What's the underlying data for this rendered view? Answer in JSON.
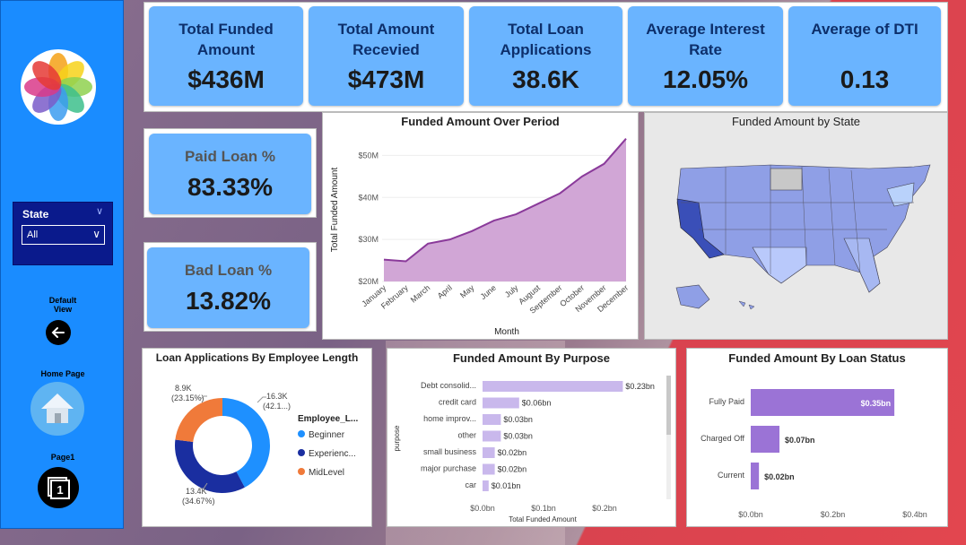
{
  "sidebar": {
    "slicer": {
      "title": "State",
      "selected": "All"
    },
    "default_view": {
      "label_line1": "Default",
      "label_line2": "View"
    },
    "home_page": {
      "label": "Home Page"
    },
    "page1": {
      "label": "Page1"
    }
  },
  "kpis": [
    {
      "title_line1": "Total Funded",
      "title_line2": "Amount",
      "value": "$436M"
    },
    {
      "title_line1": "Total Amount",
      "title_line2": "Recevied",
      "value": "$473M"
    },
    {
      "title_line1": "Total Loan",
      "title_line2": "Applications",
      "value": "38.6K"
    },
    {
      "title_line1": "Average Interest",
      "title_line2": "Rate",
      "value": "12.05%"
    },
    {
      "title_line1": "",
      "title_line2": "Average of DTI",
      "value": "0.13"
    }
  ],
  "paid_loan": {
    "title": "Paid Loan %",
    "value": "83.33%"
  },
  "bad_loan": {
    "title": "Bad Loan %",
    "value": "13.82%"
  },
  "map": {
    "title": "Funded Amount by State"
  },
  "colors": {
    "sidebar": "#1a8cff",
    "kpi": "#6ab4ff",
    "area": "#d1a6d6",
    "line": "#8a3a9a",
    "bar_purple": "#9b73d6",
    "bar_lavender": "#c9b8ec",
    "donut_blue": "#1e90ff",
    "donut_navy": "#1a2ea0",
    "donut_orange": "#f07a3a"
  },
  "chart_data": [
    {
      "type": "area",
      "title": "Funded Amount Over Period",
      "xlabel": "Month",
      "ylabel": "Total Funded Amount",
      "categories": [
        "January",
        "February",
        "March",
        "April",
        "May",
        "June",
        "July",
        "August",
        "September",
        "October",
        "November",
        "December"
      ],
      "values": [
        25.2,
        24.8,
        29.0,
        30.0,
        32.0,
        34.5,
        36.0,
        38.5,
        41.0,
        45.0,
        48.0,
        54.0
      ],
      "ylim": [
        20,
        55
      ],
      "yticks": [
        "$20M",
        "$30M",
        "$40M",
        "$50M"
      ],
      "ytick_values": [
        20,
        30,
        40,
        50
      ]
    },
    {
      "type": "pie",
      "title": "Loan Applications By Employee Length",
      "legend_title": "Employee_L...",
      "legend": [
        "Beginner",
        "Experienc...",
        "MidLevel"
      ],
      "values": [
        16.3,
        13.4,
        8.9
      ],
      "labels": [
        {
          "line1": "16.3K",
          "line2": "(42.1...)"
        },
        {
          "line1": "13.4K",
          "line2": "(34.67%)"
        },
        {
          "line1": "8.9K",
          "line2": "(23.15%)"
        }
      ]
    },
    {
      "type": "bar",
      "title": "Funded Amount By Purpose",
      "xlabel": "Total Funded Amount",
      "ylabel": "purpose",
      "categories": [
        "Debt consolid...",
        "credit card",
        "home improv...",
        "other",
        "small business",
        "major purchase",
        "car"
      ],
      "values": [
        0.23,
        0.06,
        0.03,
        0.03,
        0.02,
        0.02,
        0.01
      ],
      "data_labels": [
        "$0.23bn",
        "$0.06bn",
        "$0.03bn",
        "$0.03bn",
        "$0.02bn",
        "$0.02bn",
        "$0.01bn"
      ],
      "xticks": [
        "$0.0bn",
        "$0.1bn",
        "$0.2bn"
      ],
      "xtick_values": [
        0,
        0.1,
        0.2
      ]
    },
    {
      "type": "bar",
      "title": "Funded Amount By Loan Status",
      "categories": [
        "Fully Paid",
        "Charged Off",
        "Current"
      ],
      "values": [
        0.35,
        0.07,
        0.02
      ],
      "data_labels": [
        "$0.35bn",
        "$0.07bn",
        "$0.02bn"
      ],
      "xticks": [
        "$0.0bn",
        "$0.2bn",
        "$0.4bn"
      ],
      "xtick_values": [
        0,
        0.2,
        0.4
      ]
    }
  ]
}
